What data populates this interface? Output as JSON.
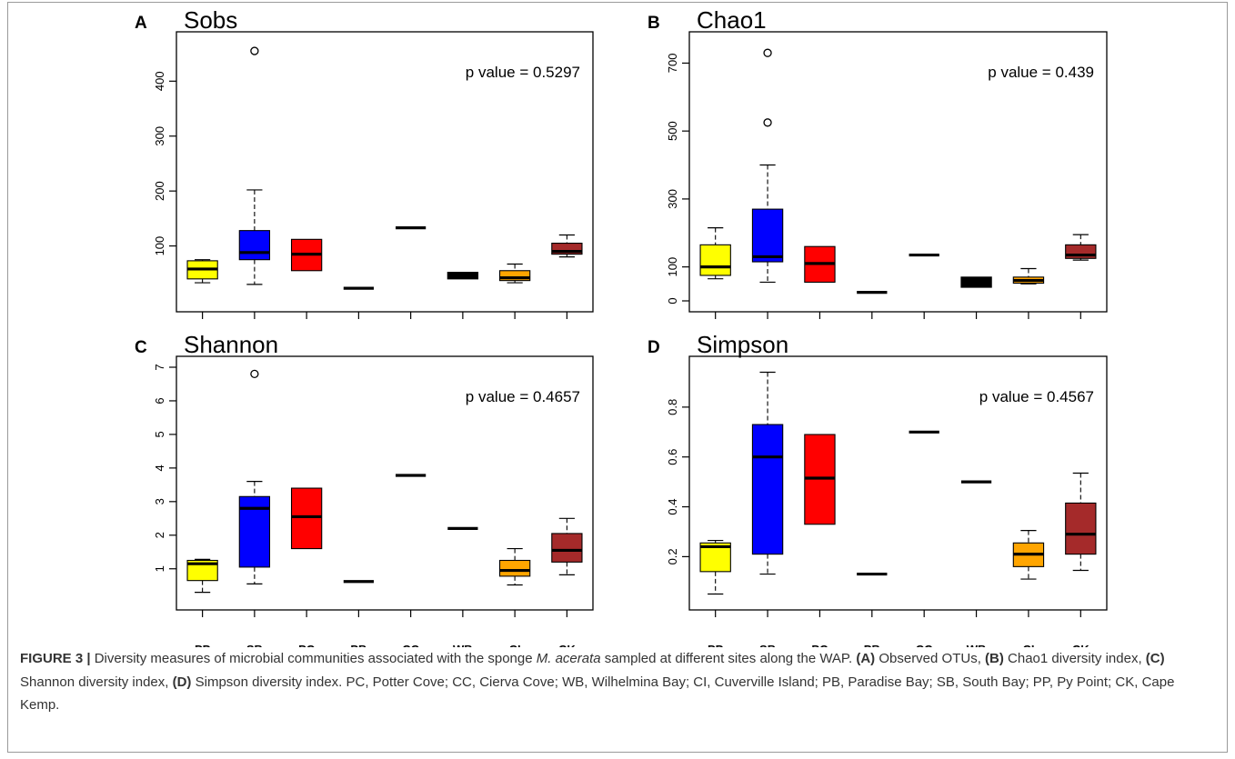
{
  "categories": [
    "PP",
    "SB",
    "PC",
    "PB",
    "CC",
    "WB",
    "CI",
    "CK"
  ],
  "box_colors": [
    "#ffff00",
    "#0000ff",
    "#ff0000",
    "#000000",
    "#000000",
    "#000000",
    "#ffa500",
    "#a52a2a"
  ],
  "chart_data": [
    {
      "type": "box",
      "panel_letter": "A",
      "title": "Sobs",
      "annotation": "p value = 0.5297",
      "ylim": [
        0,
        470
      ],
      "yticks": [
        100,
        200,
        300,
        400
      ],
      "show_x_labels": false,
      "boxes": [
        {
          "category": "PP",
          "min": 33,
          "q1": 40,
          "median": 58,
          "q3": 73,
          "max": 75,
          "outliers": []
        },
        {
          "category": "SB",
          "min": 30,
          "q1": 75,
          "median": 88,
          "q3": 128,
          "max": 202,
          "outliers": [
            455
          ]
        },
        {
          "category": "PC",
          "min": 55,
          "q1": 55,
          "median": 85,
          "q3": 112,
          "max": 112,
          "outliers": []
        },
        {
          "category": "PB",
          "min": 23,
          "q1": 23,
          "median": 23,
          "q3": 23,
          "max": 23,
          "outliers": []
        },
        {
          "category": "CC",
          "min": 133,
          "q1": 133,
          "median": 133,
          "q3": 133,
          "max": 133,
          "outliers": []
        },
        {
          "category": "WB",
          "min": 40,
          "q1": 40,
          "median": 45,
          "q3": 52,
          "max": 52,
          "outliers": []
        },
        {
          "category": "CI",
          "min": 33,
          "q1": 37,
          "median": 42,
          "q3": 55,
          "max": 67,
          "outliers": []
        },
        {
          "category": "CK",
          "min": 80,
          "q1": 85,
          "median": 90,
          "q3": 105,
          "max": 120,
          "outliers": []
        }
      ]
    },
    {
      "type": "box",
      "panel_letter": "B",
      "title": "Chao1",
      "annotation": "p value = 0.439",
      "ylim": [
        0,
        760
      ],
      "yticks": [
        0,
        100,
        300,
        500,
        700
      ],
      "show_x_labels": false,
      "boxes": [
        {
          "category": "PP",
          "min": 65,
          "q1": 75,
          "median": 100,
          "q3": 165,
          "max": 215,
          "outliers": []
        },
        {
          "category": "SB",
          "min": 55,
          "q1": 115,
          "median": 130,
          "q3": 270,
          "max": 400,
          "outliers": [
            525,
            730
          ]
        },
        {
          "category": "PC",
          "min": 55,
          "q1": 55,
          "median": 110,
          "q3": 160,
          "max": 160,
          "outliers": []
        },
        {
          "category": "PB",
          "min": 25,
          "q1": 25,
          "median": 25,
          "q3": 25,
          "max": 25,
          "outliers": []
        },
        {
          "category": "CC",
          "min": 135,
          "q1": 135,
          "median": 135,
          "q3": 135,
          "max": 135,
          "outliers": []
        },
        {
          "category": "WB",
          "min": 40,
          "q1": 40,
          "median": 55,
          "q3": 70,
          "max": 70,
          "outliers": []
        },
        {
          "category": "CI",
          "min": 50,
          "q1": 52,
          "median": 60,
          "q3": 70,
          "max": 95,
          "outliers": []
        },
        {
          "category": "CK",
          "min": 120,
          "q1": 125,
          "median": 135,
          "q3": 165,
          "max": 195,
          "outliers": []
        }
      ]
    },
    {
      "type": "box",
      "panel_letter": "C",
      "title": "Shannon",
      "annotation": "p value = 0.4657",
      "ylim": [
        0.1,
        7
      ],
      "yticks": [
        1,
        2,
        3,
        4,
        5,
        6,
        7
      ],
      "show_x_labels": true,
      "boxes": [
        {
          "category": "PP",
          "min": 0.3,
          "q1": 0.65,
          "median": 1.15,
          "q3": 1.25,
          "max": 1.28,
          "outliers": []
        },
        {
          "category": "SB",
          "min": 0.55,
          "q1": 1.05,
          "median": 2.8,
          "q3": 3.15,
          "max": 3.6,
          "outliers": [
            6.8
          ]
        },
        {
          "category": "PC",
          "min": 1.6,
          "q1": 1.6,
          "median": 2.55,
          "q3": 3.4,
          "max": 3.4,
          "outliers": []
        },
        {
          "category": "PB",
          "min": 0.62,
          "q1": 0.62,
          "median": 0.62,
          "q3": 0.62,
          "max": 0.62,
          "outliers": []
        },
        {
          "category": "CC",
          "min": 3.78,
          "q1": 3.78,
          "median": 3.78,
          "q3": 3.78,
          "max": 3.78,
          "outliers": []
        },
        {
          "category": "WB",
          "min": 2.2,
          "q1": 2.2,
          "median": 2.2,
          "q3": 2.2,
          "max": 2.2,
          "outliers": []
        },
        {
          "category": "CI",
          "min": 0.52,
          "q1": 0.78,
          "median": 0.95,
          "q3": 1.25,
          "max": 1.6,
          "outliers": []
        },
        {
          "category": "CK",
          "min": 0.82,
          "q1": 1.2,
          "median": 1.55,
          "q3": 2.05,
          "max": 2.5,
          "outliers": []
        }
      ]
    },
    {
      "type": "box",
      "panel_letter": "D",
      "title": "Simpson",
      "annotation": "p value = 0.4567",
      "ylim": [
        0.03,
        0.96
      ],
      "yticks": [
        0.2,
        0.4,
        0.6,
        0.8
      ],
      "show_x_labels": true,
      "boxes": [
        {
          "category": "PP",
          "min": 0.05,
          "q1": 0.14,
          "median": 0.24,
          "q3": 0.255,
          "max": 0.265,
          "outliers": []
        },
        {
          "category": "SB",
          "min": 0.13,
          "q1": 0.21,
          "median": 0.6,
          "q3": 0.73,
          "max": 0.94,
          "outliers": []
        },
        {
          "category": "PC",
          "min": 0.33,
          "q1": 0.33,
          "median": 0.515,
          "q3": 0.69,
          "max": 0.69,
          "outliers": []
        },
        {
          "category": "PB",
          "min": 0.13,
          "q1": 0.13,
          "median": 0.13,
          "q3": 0.13,
          "max": 0.13,
          "outliers": []
        },
        {
          "category": "CC",
          "min": 0.7,
          "q1": 0.7,
          "median": 0.7,
          "q3": 0.7,
          "max": 0.7,
          "outliers": []
        },
        {
          "category": "WB",
          "min": 0.5,
          "q1": 0.5,
          "median": 0.5,
          "q3": 0.5,
          "max": 0.5,
          "outliers": []
        },
        {
          "category": "CI",
          "min": 0.11,
          "q1": 0.16,
          "median": 0.21,
          "q3": 0.255,
          "max": 0.305,
          "outliers": []
        },
        {
          "category": "CK",
          "min": 0.145,
          "q1": 0.21,
          "median": 0.29,
          "q3": 0.415,
          "max": 0.535,
          "outliers": []
        }
      ]
    }
  ],
  "caption": {
    "label": "FIGURE 3 |",
    "t1": " Diversity measures of microbial communities associated with the sponge ",
    "species": "M. acerata",
    "t2": " sampled at different sites along the WAP. ",
    "a": "(A)",
    "t3": " Observed OTUs, ",
    "b": "(B)",
    "t4": " Chao1 diversity index, ",
    "c": "(C)",
    "t5": " Shannon diversity index, ",
    "d": "(D)",
    "t6": " Simpson diversity index. PC, Potter Cove; CC, Cierva Cove; WB, Wilhelmina Bay; CI, Cuverville Island; PB, Paradise Bay; SB, South Bay; PP, Py Point; CK, Cape Kemp."
  }
}
